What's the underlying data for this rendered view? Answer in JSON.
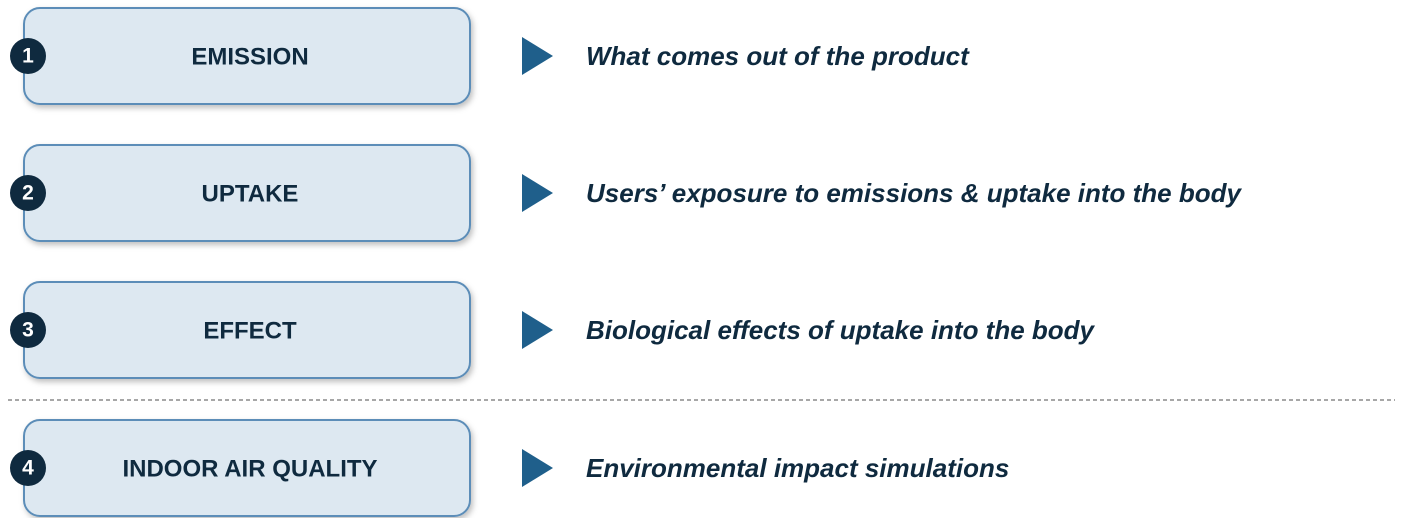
{
  "steps": [
    {
      "number": "1",
      "label": "EMISSION",
      "description": "What comes out of the product"
    },
    {
      "number": "2",
      "label": "UPTAKE",
      "description": "Users’ exposure to emissions & uptake into the body"
    },
    {
      "number": "3",
      "label": "EFFECT",
      "description": "Biological effects of uptake into the body"
    },
    {
      "number": "4",
      "label": "INDOOR AIR QUALITY",
      "description": "Environmental impact simulations"
    }
  ]
}
